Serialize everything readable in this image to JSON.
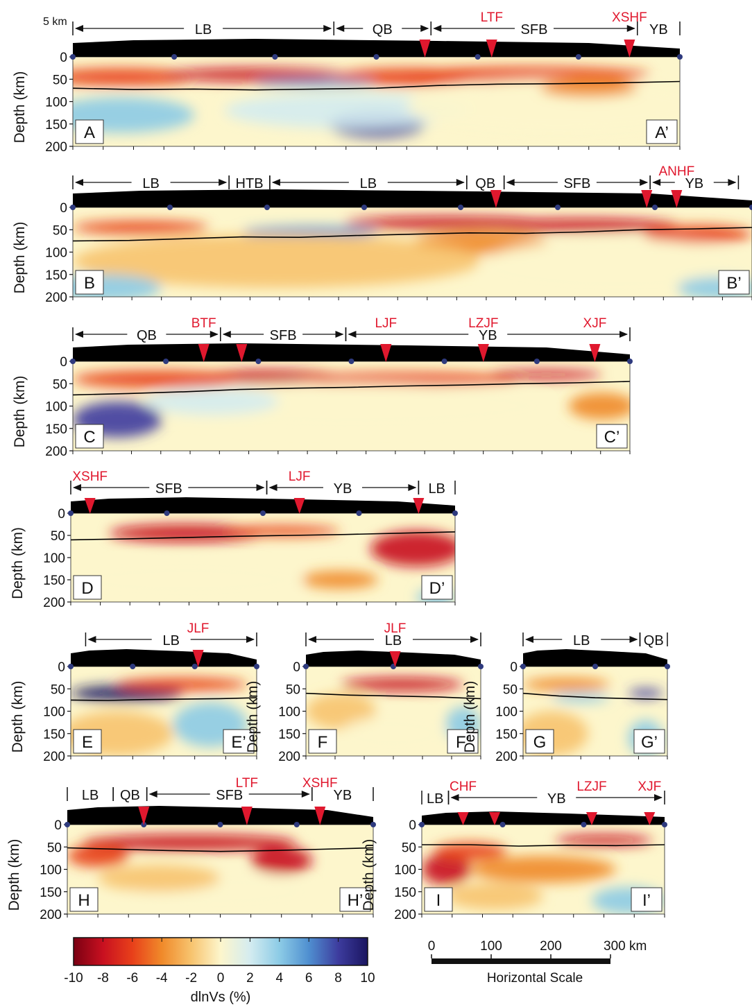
{
  "axis": {
    "y_label": "Depth (km)",
    "y_ticks": [
      "0",
      "50",
      "100",
      "150",
      "200"
    ],
    "topo_label": "5 km"
  },
  "colorbar": {
    "label": "dlnVs (%)",
    "ticks": [
      "-10",
      "-8",
      "-6",
      "-4",
      "-2",
      "0",
      "2",
      "4",
      "6",
      "8",
      "10"
    ],
    "colors": [
      "#7a0012",
      "#c81020",
      "#e8401a",
      "#f08a2a",
      "#f7c36e",
      "#fdf6cc",
      "#d4ecf0",
      "#8ccbe6",
      "#4f8fd0",
      "#3d3c9e",
      "#1a1560"
    ]
  },
  "scalebar": {
    "ticks": [
      "0",
      "100",
      "200",
      "300 km"
    ],
    "label": "Horizontal Scale"
  },
  "colors": {
    "fault": "#e0182e",
    "station": "#2e3a7e",
    "moho": "#000000",
    "fault_label": "#e0182e"
  },
  "panels": [
    {
      "id": "A",
      "left_label": "A",
      "right_label": "A’",
      "blocks": [
        "LB",
        "QB",
        "SFB",
        "YB"
      ],
      "faults": [
        "LTF",
        "XSHF"
      ]
    },
    {
      "id": "B",
      "left_label": "B",
      "right_label": "B’",
      "blocks": [
        "LB",
        "HTB",
        "LB",
        "QB",
        "SFB",
        "YB"
      ],
      "faults": [
        "ANHF"
      ]
    },
    {
      "id": "C",
      "left_label": "C",
      "right_label": "C’",
      "blocks": [
        "QB",
        "SFB",
        "YB"
      ],
      "faults": [
        "BTF",
        "LJF",
        "LZJF",
        "XJF"
      ]
    },
    {
      "id": "D",
      "left_label": "D",
      "right_label": "D’",
      "blocks": [
        "SFB",
        "YB",
        "LB"
      ],
      "faults": [
        "XSHF",
        "LJF"
      ]
    },
    {
      "id": "E",
      "left_label": "E",
      "right_label": "E’",
      "blocks": [
        "LB"
      ],
      "faults": [
        "JLF"
      ]
    },
    {
      "id": "F",
      "left_label": "F",
      "right_label": "F’",
      "blocks": [
        "LB"
      ],
      "faults": [
        "JLF"
      ]
    },
    {
      "id": "G",
      "left_label": "G",
      "right_label": "G’",
      "blocks": [
        "LB",
        "QB"
      ],
      "faults": []
    },
    {
      "id": "H",
      "left_label": "H",
      "right_label": "H’",
      "blocks": [
        "LB",
        "QB",
        "SFB",
        "YB"
      ],
      "faults": [
        "LTF",
        "XSHF"
      ]
    },
    {
      "id": "I",
      "left_label": "I",
      "right_label": "I’",
      "blocks": [
        "LB",
        "YB"
      ],
      "faults": [
        "CHF",
        "LZJF",
        "XJF"
      ]
    }
  ]
}
